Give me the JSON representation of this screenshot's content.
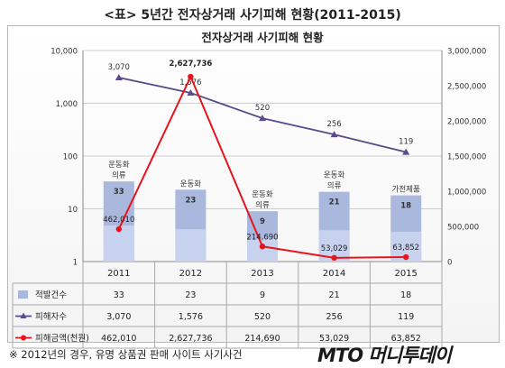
{
  "page_title": "<표> 5년간 전자상거래 사기피해 현황(2011-2015)",
  "footnote": "※ 2012년의 경우, 유명 상품권 판매 사이트 사기사건",
  "brand": "MTO 머니투데이",
  "chart_data": {
    "type": "bar",
    "title": "전자상거래 사기피해 현황",
    "categories": [
      "2011",
      "2012",
      "2013",
      "2014",
      "2015"
    ],
    "y_left": {
      "scale": "log",
      "min": 1,
      "max": 10000,
      "ticks": [
        "10,000",
        "1,000",
        "100",
        "10",
        "1"
      ],
      "tick_values": [
        10000,
        1000,
        100,
        10,
        1
      ]
    },
    "y_right": {
      "scale": "linear",
      "min": 0,
      "max": 3000000,
      "ticks": [
        "3,000,000",
        "2,500,000",
        "2,000,000",
        "1,500,000",
        "1,000,000",
        "500,000",
        "0"
      ],
      "tick_values": [
        3000000,
        2500000,
        2000000,
        1500000,
        1000000,
        500000,
        0
      ]
    },
    "series": [
      {
        "name": "적발건수",
        "type": "bar",
        "axis": "left",
        "values": [
          33,
          23,
          9,
          21,
          18
        ],
        "labels": [
          "33",
          "23",
          "9",
          "21",
          "18"
        ],
        "color": "#a9b8dc"
      },
      {
        "name": "피해자수",
        "type": "line",
        "axis": "left",
        "values": [
          3070,
          1576,
          520,
          256,
          119
        ],
        "labels": [
          "3,070",
          "1,576",
          "520",
          "256",
          "119"
        ],
        "color": "#5a4a8c"
      },
      {
        "name": "피해금액(천원)",
        "type": "line",
        "axis": "right",
        "values": [
          462010,
          2627736,
          214690,
          53029,
          63852
        ],
        "labels": [
          "462,010",
          "2,627,736",
          "214,690",
          "53,029",
          "63,852"
        ],
        "color": "#e8141c"
      }
    ],
    "bar_annotations": [
      {
        "category": "2011",
        "text": "운동화"
      },
      {
        "category": "2011",
        "text": "의류"
      },
      {
        "category": "2012",
        "text": "운동화"
      },
      {
        "category": "2013",
        "text": "운동화"
      },
      {
        "category": "2013",
        "text": "의류"
      },
      {
        "category": "2014",
        "text": "운동화"
      },
      {
        "category": "2014",
        "text": "의류"
      },
      {
        "category": "2015",
        "text": "가전제품"
      }
    ],
    "table": {
      "rows": [
        {
          "label": "적발건수",
          "values": [
            "33",
            "23",
            "9",
            "21",
            "18"
          ]
        },
        {
          "label": "피해자수",
          "values": [
            "3,070",
            "1,576",
            "520",
            "256",
            "119"
          ]
        },
        {
          "label": "피해금액(천원)",
          "values": [
            "462,010",
            "2,627,736",
            "214,690",
            "53,029",
            "63,852"
          ]
        }
      ]
    }
  }
}
